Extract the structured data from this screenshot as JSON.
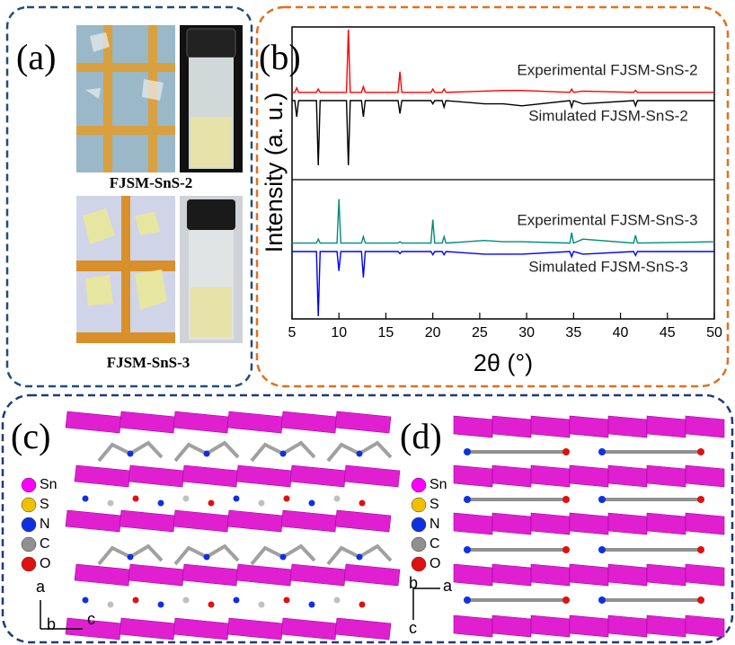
{
  "chart_data": {
    "type": "line",
    "label": "(b)",
    "xlabel": "2θ (°)",
    "ylabel": "Intensity (a. u.)",
    "x": [
      5,
      5.3,
      5.5,
      5.7,
      7.6,
      7.8,
      8.0,
      9.8,
      10.0,
      10.2,
      10.8,
      11.0,
      11.2,
      12.4,
      12.6,
      12.8,
      16.3,
      16.5,
      16.7,
      19.8,
      20.0,
      20.2,
      21.0,
      21.2,
      21.4,
      25.5,
      27.5,
      29.5,
      34.6,
      34.8,
      35.0,
      36.0,
      41.4,
      41.6,
      41.8,
      50
    ],
    "xlim": [
      5,
      50
    ],
    "xticks": [
      5,
      10,
      15,
      20,
      25,
      30,
      35,
      40,
      45,
      50
    ],
    "series": [
      {
        "name": "Experimental FJSM-SnS-2",
        "color": "#ff0000",
        "values": [
          3,
          3,
          10,
          3,
          3,
          8,
          3,
          3,
          3,
          3,
          3,
          100,
          3,
          3,
          12,
          3,
          3,
          35,
          3,
          3,
          8,
          3,
          3,
          8,
          3,
          5,
          6,
          6,
          3,
          8,
          3,
          5,
          3,
          6,
          3,
          3
        ]
      },
      {
        "name": "Simulated FJSM-SnS-2",
        "color": "#000000",
        "values": [
          0,
          0,
          25,
          0,
          0,
          100,
          0,
          0,
          0,
          0,
          0,
          100,
          0,
          0,
          25,
          0,
          0,
          20,
          0,
          0,
          5,
          0,
          0,
          10,
          0,
          5,
          5,
          8,
          0,
          10,
          0,
          5,
          0,
          8,
          0,
          0
        ]
      },
      {
        "name": "Experimental FJSM-SnS-3",
        "color": "#008b7a",
        "values": [
          2,
          2,
          2,
          2,
          2,
          8,
          2,
          2,
          70,
          2,
          2,
          2,
          2,
          2,
          12,
          2,
          2,
          4,
          2,
          2,
          38,
          2,
          2,
          12,
          2,
          6,
          4,
          4,
          2,
          18,
          2,
          8,
          2,
          14,
          2,
          4
        ]
      },
      {
        "name": "Simulated FJSM-SnS-3",
        "color": "#0000ff",
        "values": [
          0,
          0,
          0,
          0,
          0,
          100,
          0,
          0,
          30,
          0,
          0,
          0,
          0,
          0,
          40,
          0,
          0,
          3,
          0,
          0,
          5,
          0,
          0,
          5,
          0,
          4,
          4,
          4,
          0,
          8,
          0,
          4,
          0,
          6,
          0,
          0
        ]
      }
    ]
  },
  "panels": {
    "a": {
      "label": "(a)",
      "captions": [
        "FJSM-SnS-2",
        "FJSM-SnS-3"
      ]
    },
    "c": {
      "label": "(c)",
      "legend": [
        "Sn",
        "S",
        "N",
        "C",
        "O"
      ],
      "axes": [
        "a",
        "b",
        "c"
      ]
    },
    "d": {
      "label": "(d)",
      "legend": [
        "Sn",
        "S",
        "N",
        "C",
        "O"
      ],
      "axes": [
        "b",
        "a",
        "c"
      ]
    }
  }
}
